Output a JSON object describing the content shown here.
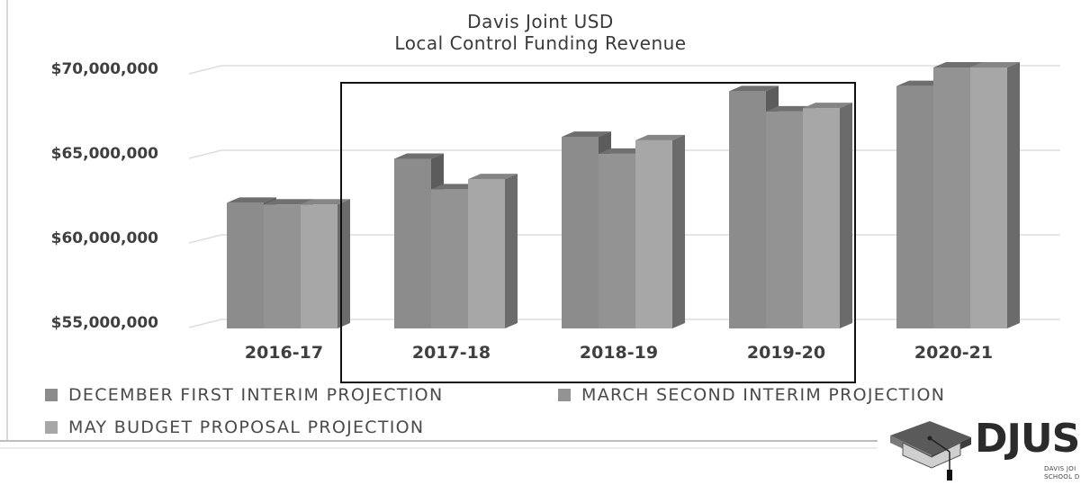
{
  "chart_data": {
    "type": "bar",
    "title": "Davis Joint USD",
    "subtitle": "Local Control Funding Revenue",
    "xlabel": "",
    "ylabel": "",
    "categories": [
      "2016-17",
      "2017-18",
      "2018-19",
      "2019-20",
      "2020-21"
    ],
    "series": [
      {
        "name": "DECEMBER FIRST INTERIM PROJECTION",
        "values": [
          62000000,
          64600000,
          65900000,
          68600000,
          68900000
        ],
        "color": "#8c8c8c"
      },
      {
        "name": "MARCH SECOND INTERIM PROJECTION",
        "values": [
          61900000,
          62800000,
          64900000,
          67400000,
          70000000
        ],
        "color": "#939393"
      },
      {
        "name": "MAY BUDGET PROPOSAL PROJECTION",
        "values": [
          61900000,
          63400000,
          65700000,
          67600000,
          70000000
        ],
        "color": "#a7a7a7"
      }
    ],
    "ylim": [
      55000000,
      70000000
    ],
    "yticks": [
      55000000,
      60000000,
      65000000,
      70000000
    ],
    "ytick_labels": [
      "$55,000,000",
      "$60,000,000",
      "$65,000,000",
      "$70,000,000"
    ],
    "grid": true,
    "legend_position": "bottom",
    "highlighted_categories": [
      "2017-18",
      "2018-19",
      "2019-20"
    ],
    "style": "3d-column-grayscale"
  },
  "logo": {
    "text": "DJUSD",
    "subtext_1": "DAVIS JOI",
    "subtext_2": "SCHOOL D"
  }
}
